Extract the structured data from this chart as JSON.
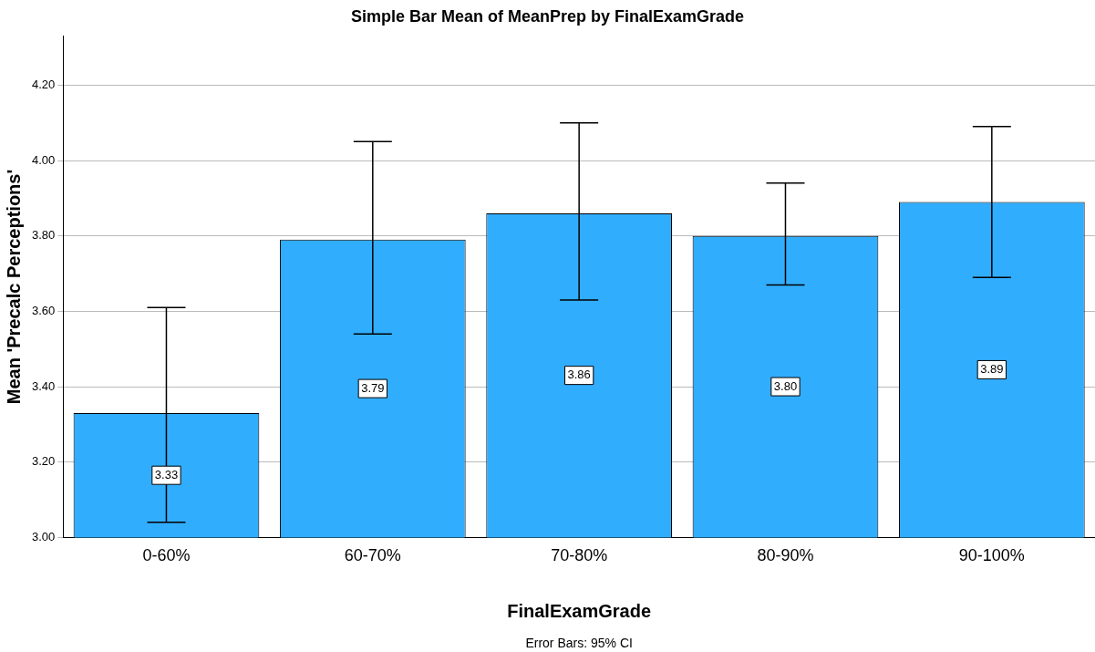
{
  "chart_data": {
    "type": "bar",
    "title": "Simple Bar Mean of MeanPrep by FinalExamGrade",
    "xlabel": "FinalExamGrade",
    "ylabel": "Mean 'Precalc Perceptions'",
    "categories": [
      "0-60%",
      "60-70%",
      "70-80%",
      "80-90%",
      "90-100%"
    ],
    "values": [
      3.33,
      3.79,
      3.86,
      3.8,
      3.89
    ],
    "color": "#31adfe",
    "errors": [
      [
        3.04,
        3.61
      ],
      [
        3.54,
        4.05
      ],
      [
        3.63,
        4.1
      ],
      [
        3.67,
        3.94
      ],
      [
        3.69,
        4.09
      ]
    ],
    "value_labels": [
      "3.33",
      "3.79",
      "3.86",
      "3.80",
      "3.89"
    ],
    "ylim": [
      3.0,
      4.33
    ],
    "yticks": [
      {
        "value": 3.0,
        "label": "3.00"
      },
      {
        "value": 3.2,
        "label": "3.20"
      },
      {
        "value": 3.4,
        "label": "3.40"
      },
      {
        "value": 3.6,
        "label": "3.60"
      },
      {
        "value": 3.8,
        "label": "3.80"
      },
      {
        "value": 4.0,
        "label": "4.00"
      },
      {
        "value": 4.2,
        "label": "4.20"
      }
    ],
    "grid": "y",
    "legend": false,
    "annotations": [
      "Error Bars: 95% CI"
    ]
  }
}
